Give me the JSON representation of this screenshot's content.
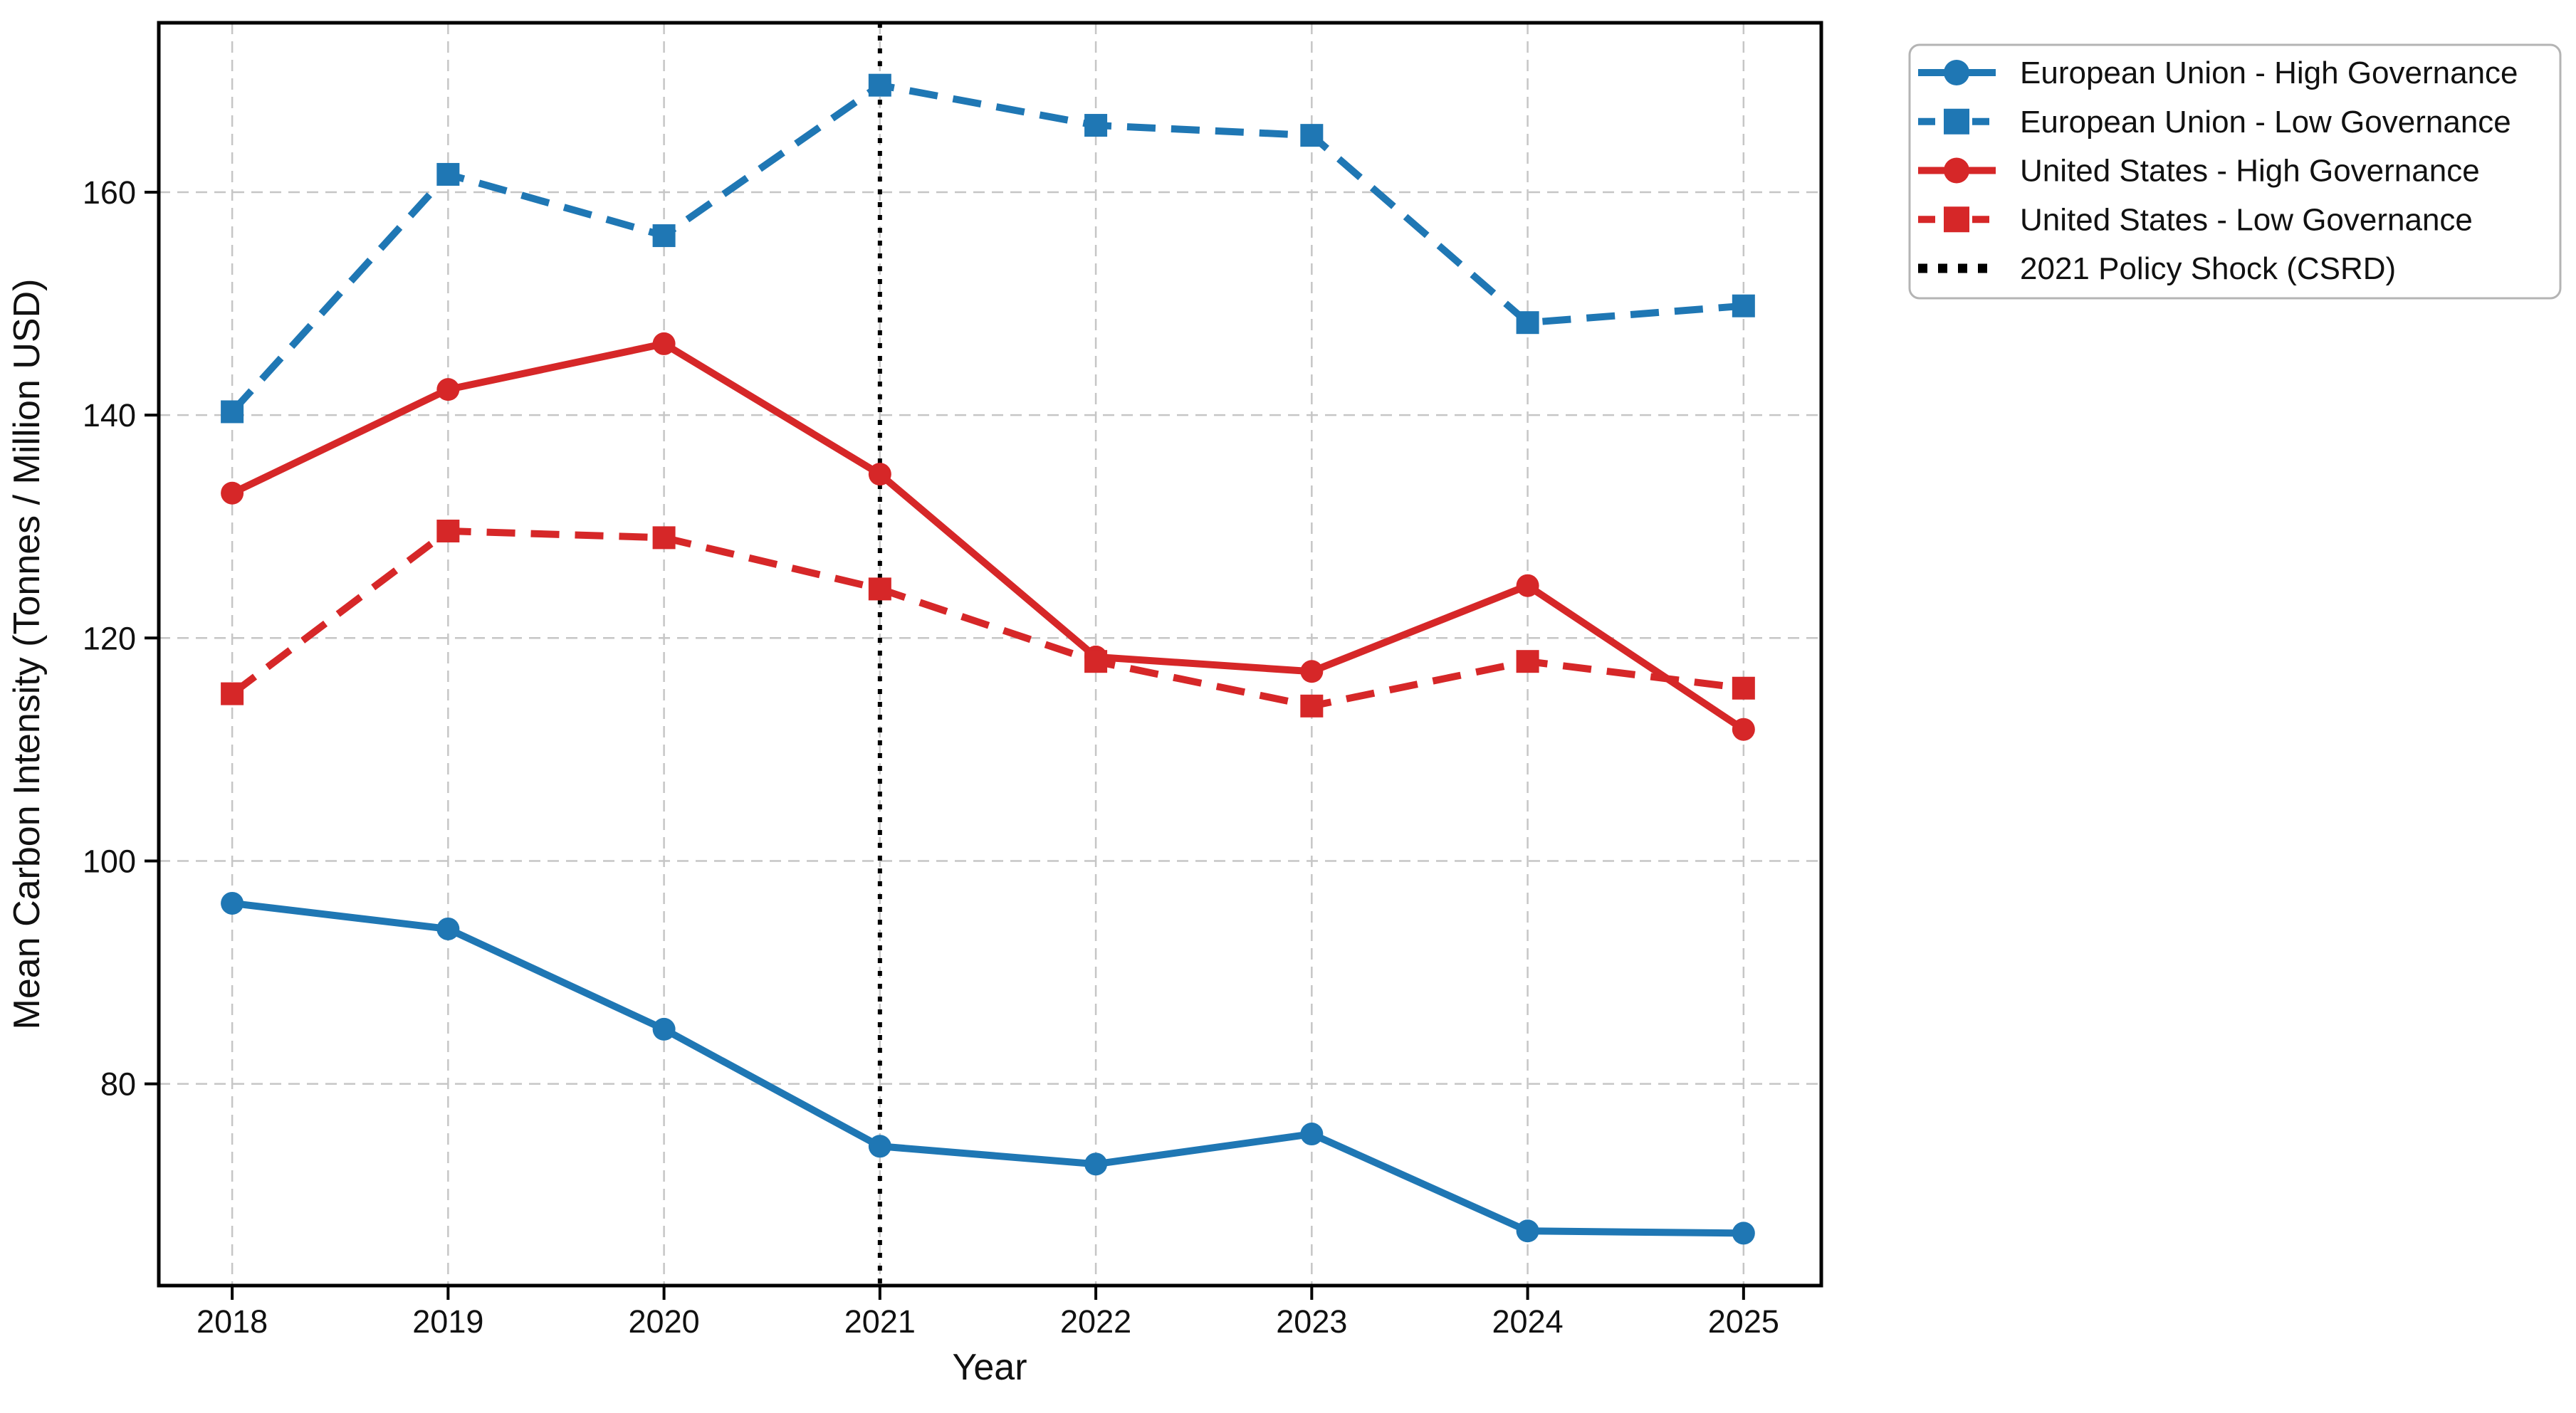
{
  "page": {
    "background": "#ffffff"
  },
  "chart_data": {
    "type": "line",
    "title": "",
    "xlabel": "Year",
    "ylabel": "Mean Carbon Intensity (Tonnes / Million USD)",
    "x": [
      2018,
      2019,
      2020,
      2021,
      2022,
      2023,
      2024,
      2025
    ],
    "x_tick_labels": [
      "2018",
      "2019",
      "2020",
      "2021",
      "2022",
      "2023",
      "2024",
      "2025"
    ],
    "y_ticks": [
      80,
      100,
      120,
      140,
      160
    ],
    "xlim": [
      2017.66,
      2025.36
    ],
    "ylim": [
      61.9,
      175.2
    ],
    "grid": true,
    "grid_style": "dashed",
    "legend_position": "outside upper right",
    "series": [
      {
        "name": "European Union - High Governance",
        "color": "#1f77b4",
        "linestyle": "solid",
        "marker": "circle",
        "values": [
          96.2,
          93.9,
          84.9,
          74.4,
          72.8,
          75.5,
          66.8,
          66.6
        ]
      },
      {
        "name": "European Union - Low Governance",
        "color": "#1f77b4",
        "linestyle": "dashed",
        "marker": "square",
        "values": [
          140.3,
          161.6,
          156.1,
          169.6,
          166.0,
          165.1,
          148.3,
          149.8
        ]
      },
      {
        "name": "United States - High Governance",
        "color": "#d62728",
        "linestyle": "solid",
        "marker": "circle",
        "values": [
          133.0,
          142.3,
          146.4,
          134.7,
          118.3,
          117.0,
          124.7,
          111.8
        ]
      },
      {
        "name": "United States - Low Governance",
        "color": "#d62728",
        "linestyle": "dashed",
        "marker": "square",
        "values": [
          115.0,
          129.6,
          129.0,
          124.4,
          117.9,
          113.9,
          117.9,
          115.5
        ]
      }
    ],
    "annotation_vline": {
      "x": 2021,
      "label": "2021 Policy Shock (CSRD)",
      "color": "#000000",
      "linestyle": "dotted"
    }
  },
  "style": {
    "grid_color": "#c6c6c6",
    "spine_color": "#000000",
    "text_color": "#111111",
    "legend_border_color": "#b4b4b4",
    "legend_background": "#ffffff"
  }
}
